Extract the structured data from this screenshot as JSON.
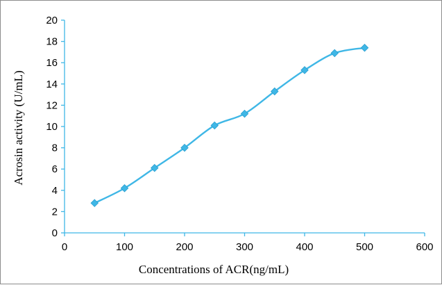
{
  "chart_data": {
    "type": "line",
    "xlabel": "Concentrations of ACR(ng/mL)",
    "ylabel": "Acrosin activity (U/mL)",
    "xlim": [
      0,
      600
    ],
    "ylim": [
      0,
      20
    ],
    "xticks": [
      0,
      100,
      200,
      300,
      400,
      500,
      600
    ],
    "yticks": [
      0,
      2,
      4,
      6,
      8,
      10,
      12,
      14,
      16,
      18,
      20
    ],
    "grid": false,
    "legend": "none",
    "series": [
      {
        "x": [
          50,
          100,
          150,
          200,
          250,
          300,
          350,
          400,
          450,
          500
        ],
        "y": [
          2.8,
          4.2,
          6.1,
          8.0,
          10.1,
          11.2,
          13.3,
          15.3,
          16.9,
          17.4
        ],
        "color": "#3fb7e6",
        "marker": "diamond",
        "smooth": true
      }
    ],
    "axis_color": "#3fb7e6"
  }
}
